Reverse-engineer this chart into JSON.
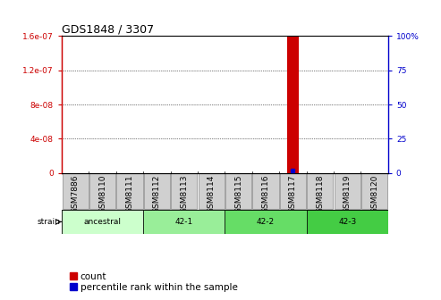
{
  "title": "GDS1848 / 3307",
  "samples": [
    "GSM7886",
    "GSM8110",
    "GSM8111",
    "GSM8112",
    "GSM8113",
    "GSM8114",
    "GSM8115",
    "GSM8116",
    "GSM8117",
    "GSM8118",
    "GSM8119",
    "GSM8120"
  ],
  "count_values": [
    0,
    0,
    0,
    0,
    0,
    0,
    0,
    0,
    1.6e-07,
    0,
    0,
    0
  ],
  "percentile_value_index": 8,
  "percentile_value": 2,
  "left_yticks": [
    0,
    4e-08,
    8e-08,
    1.2e-07,
    1.6e-07
  ],
  "left_yticklabels": [
    "0",
    "4e-08",
    "8e-08",
    "1.2e-07",
    "1.6e-07"
  ],
  "right_yticks": [
    0,
    25,
    50,
    75,
    100
  ],
  "right_yticklabels": [
    "0",
    "25",
    "50",
    "75",
    "100%"
  ],
  "ylim_left": [
    0,
    1.6e-07
  ],
  "ylim_right": [
    0,
    100
  ],
  "bar_color": "#cc0000",
  "dot_color": "#0000cc",
  "grid_color": "#000000",
  "sample_box_color": "#d0d0d0",
  "strain_groups": [
    {
      "label": "ancestral",
      "start": 0,
      "end": 3,
      "color": "#ccffcc"
    },
    {
      "label": "42-1",
      "start": 3,
      "end": 6,
      "color": "#99ee99"
    },
    {
      "label": "42-2",
      "start": 6,
      "end": 9,
      "color": "#66dd66"
    },
    {
      "label": "42-3",
      "start": 9,
      "end": 12,
      "color": "#44cc44"
    }
  ],
  "strain_label": "strain",
  "legend_count_label": "count",
  "legend_percentile_label": "percentile rank within the sample",
  "title_fontsize": 9,
  "tick_fontsize": 6.5,
  "label_fontsize": 7.5
}
